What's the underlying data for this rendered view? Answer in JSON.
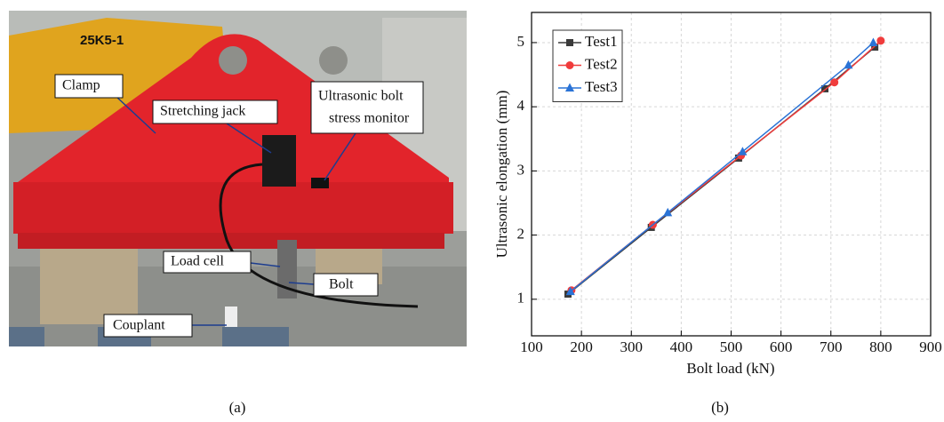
{
  "photo": {
    "labels": {
      "clamp": "Clamp",
      "jack": "Stretching jack",
      "monitor": [
        "Ultrasonic bolt",
        "stress monitor"
      ],
      "load_cell": "Load cell",
      "bolt": "Bolt",
      "couplant": "Couplant",
      "crane": "25K5-1"
    },
    "caption": "(a)"
  },
  "chart_data": {
    "type": "line",
    "caption": "(b)",
    "x_label": "Bolt load (kN)",
    "y_label": "Ultrasonic elongation (mm)",
    "xlim": [
      100,
      900
    ],
    "xticks": [
      100,
      200,
      300,
      400,
      500,
      600,
      700,
      800,
      900
    ],
    "ylim": [
      0.43,
      5.47
    ],
    "yticks": [
      1,
      2,
      3,
      4,
      5
    ],
    "grid": true,
    "legend": "top-left",
    "series": [
      {
        "name": "Test1",
        "color": "#3a3a3a",
        "marker": "square",
        "x": [
          173,
          340,
          515,
          688,
          788
        ],
        "values": [
          1.08,
          2.12,
          3.2,
          4.28,
          4.93
        ]
      },
      {
        "name": "Test2",
        "color": "#f03c3c",
        "marker": "circle",
        "x": [
          180,
          343,
          520,
          707,
          800
        ],
        "values": [
          1.14,
          2.16,
          3.24,
          4.38,
          5.03
        ]
      },
      {
        "name": "Test3",
        "color": "#2a73d6",
        "marker": "triangle",
        "x": [
          178,
          373,
          523,
          735,
          785
        ],
        "values": [
          1.12,
          2.35,
          3.3,
          4.65,
          5.0
        ]
      }
    ]
  }
}
